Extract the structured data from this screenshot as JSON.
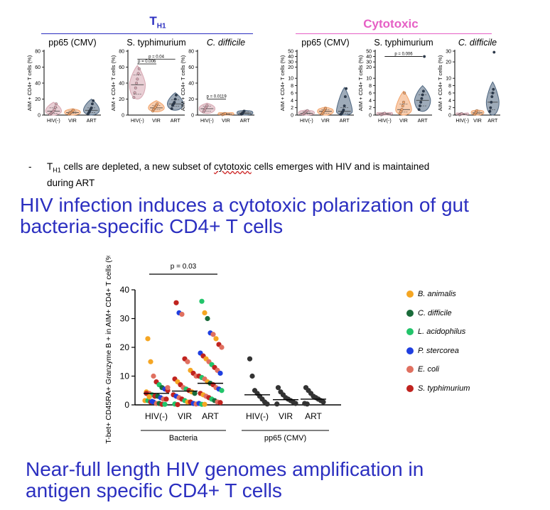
{
  "top": {
    "th1_label": "T",
    "th1_sub": "H1",
    "cytotoxic_label": "Cytotoxic",
    "th1_color": "#2b2fc0",
    "cytotoxic_color": "#e65fc5"
  },
  "chart_data": [
    {
      "id": "th1_pp65",
      "type": "violin",
      "title": "pp65 (CMV)",
      "title_italic": false,
      "ylabel": "AIM + CD4+ T cells (%)",
      "categories": [
        "HIV(-)",
        "VIR",
        "ART"
      ],
      "yticks": [
        0,
        20,
        40,
        60,
        80
      ],
      "ylim": [
        0,
        80
      ],
      "colors": [
        "#d7a7b2",
        "#f2a46b",
        "#4e6680"
      ],
      "groups": [
        {
          "points": [
            1,
            2,
            3,
            4,
            5,
            7,
            10,
            14
          ],
          "median": 5,
          "q1": 2,
          "q3": 9,
          "min": 0,
          "max": 16
        },
        {
          "points": [
            1,
            2,
            3,
            4,
            5,
            6
          ],
          "median": 3,
          "q1": 2,
          "q3": 5,
          "min": 0,
          "max": 8
        },
        {
          "points": [
            1,
            3,
            5,
            7,
            9,
            14,
            18
          ],
          "median": 6,
          "q1": 3,
          "q3": 9,
          "min": 0,
          "max": 20
        }
      ],
      "annotations": []
    },
    {
      "id": "th1_styph",
      "type": "violin",
      "title": "S. typhimurium",
      "title_italic": "S.",
      "ylabel": "AIM + CD4+ T cells (%)",
      "categories": [
        "HIV(-)",
        "VIR",
        "ART"
      ],
      "yticks": [
        0,
        20,
        40,
        60,
        80
      ],
      "ylim": [
        0,
        80
      ],
      "colors": [
        "#d7a7b2",
        "#f2a46b",
        "#4e6680"
      ],
      "groups": [
        {
          "points": [
            22,
            28,
            34,
            40,
            45,
            52,
            58
          ],
          "median": 38,
          "q1": 26,
          "q3": 50,
          "min": 20,
          "max": 62
        },
        {
          "points": [
            5,
            7,
            9,
            10,
            12,
            14
          ],
          "median": 9,
          "q1": 7,
          "q3": 12,
          "min": 4,
          "max": 18
        },
        {
          "points": [
            8,
            12,
            14,
            16,
            20,
            25
          ],
          "median": 14,
          "q1": 11,
          "q3": 19,
          "min": 6,
          "max": 28
        }
      ],
      "annotations": [
        {
          "from": 0,
          "to": 2,
          "label": "p = 0.04",
          "y": 70
        },
        {
          "from": 0,
          "to": 1,
          "label": "p = 0.006",
          "y": 64
        }
      ]
    },
    {
      "id": "th1_cdiff",
      "type": "violin",
      "title": "C. difficile",
      "title_italic": "all",
      "ylabel": "AIM + CD4+ T cells (%)",
      "categories": [
        "HIV(-)",
        "VIR",
        "ART"
      ],
      "yticks": [
        0,
        20,
        40,
        60,
        80
      ],
      "ylim": [
        0,
        80
      ],
      "colors": [
        "#d7a7b2",
        "#f2a46b",
        "#4e6680"
      ],
      "groups": [
        {
          "points": [
            4,
            6,
            8,
            10,
            12
          ],
          "median": 8,
          "q1": 5,
          "q3": 11,
          "min": 2,
          "max": 15
        },
        {
          "points": [
            0.5,
            1,
            1.5,
            2
          ],
          "median": 1,
          "q1": 0.5,
          "q3": 1.8,
          "min": 0,
          "max": 3
        },
        {
          "points": [
            1,
            2,
            3,
            5
          ],
          "median": 2.5,
          "q1": 1.5,
          "q3": 4,
          "min": 0,
          "max": 6
        }
      ],
      "annotations": [
        {
          "from": 0,
          "to": 1,
          "label": "p = 0.0119",
          "y": 20
        }
      ]
    },
    {
      "id": "cyto_pp65",
      "type": "violin",
      "title": "pp65 (CMV)",
      "title_italic": false,
      "ylabel": "AIM + CD4+ T cells (%)",
      "categories": [
        "HIV(-)",
        "VIR",
        "ART"
      ],
      "yticks": [
        0,
        2,
        4,
        6,
        8,
        10,
        20,
        30,
        40,
        50
      ],
      "ylim": [
        0,
        50
      ],
      "broken_at": 10,
      "colors": [
        "#d7a7b2",
        "#f2a46b",
        "#4e6680"
      ],
      "groups": [
        {
          "points": [
            0.2,
            0.4,
            0.6,
            0.8,
            1.0,
            1.2
          ],
          "median": 0.5,
          "q1": 0.3,
          "q3": 0.9,
          "min": 0,
          "max": 1.4
        },
        {
          "points": [
            0.3,
            0.6,
            1.0,
            1.4,
            1.8
          ],
          "median": 1.0,
          "q1": 0.5,
          "q3": 1.5,
          "min": 0,
          "max": 2.2
        },
        {
          "points": [
            0.2,
            0.5,
            0.9,
            1.4,
            2.5,
            5.0,
            7.2
          ],
          "median": 1.0,
          "q1": 0.4,
          "q3": 2.0,
          "min": 0,
          "max": 7.5
        }
      ],
      "annotations": []
    },
    {
      "id": "cyto_styph",
      "type": "violin",
      "title": "S. typhimurium",
      "title_italic": "S.",
      "ylabel": "AIM + CD4+ T cells (%)",
      "categories": [
        "HIV(-)",
        "VIR",
        "ART"
      ],
      "yticks": [
        0,
        2,
        4,
        6,
        8,
        10,
        20,
        30,
        40,
        50
      ],
      "ylim": [
        0,
        50
      ],
      "broken_at": 10,
      "colors": [
        "#d7a7b2",
        "#f2a46b",
        "#4e6680"
      ],
      "groups": [
        {
          "points": [
            0.1,
            0.2,
            0.3,
            0.4,
            0.5
          ],
          "median": 0.3,
          "q1": 0.2,
          "q3": 0.4,
          "min": 0,
          "max": 0.6
        },
        {
          "points": [
            0.5,
            1.0,
            1.5,
            2.5,
            3.5,
            6.0
          ],
          "median": 1.5,
          "q1": 0.8,
          "q3": 3.0,
          "min": 0,
          "max": 6.5
        },
        {
          "points": [
            1.5,
            2.5,
            3.5,
            4.5,
            5.5,
            6.5,
            40
          ],
          "median": 4.0,
          "q1": 2.5,
          "q3": 5.5,
          "min": 1,
          "max": 8
        }
      ],
      "annotations": [
        {
          "from": 0,
          "to": 2,
          "label": "p = 0.006",
          "y": 40
        }
      ]
    },
    {
      "id": "cyto_cdiff",
      "type": "violin",
      "title": "C. difficile",
      "title_italic": "all",
      "ylabel": "AIM + CD4+ T cells (%)",
      "categories": [
        "HIV(-)",
        "VIR",
        "ART"
      ],
      "yticks": [
        0,
        2,
        4,
        6,
        8,
        10,
        20,
        30
      ],
      "ylim": [
        0,
        30
      ],
      "broken_at": 10,
      "colors": [
        "#d7a7b2",
        "#f2a46b",
        "#4e6680"
      ],
      "groups": [
        {
          "points": [
            0.1,
            0.2,
            0.3,
            0.4
          ],
          "median": 0.2,
          "q1": 0.1,
          "q3": 0.3,
          "min": 0,
          "max": 0.5
        },
        {
          "points": [
            0.2,
            0.5,
            0.8,
            1.2
          ],
          "median": 0.6,
          "q1": 0.3,
          "q3": 1.0,
          "min": 0,
          "max": 1.4
        },
        {
          "points": [
            1,
            2,
            3.5,
            5,
            6,
            7,
            29
          ],
          "median": 3.5,
          "q1": 1.5,
          "q3": 6.0,
          "min": 0,
          "max": 9
        }
      ],
      "annotations": []
    },
    {
      "id": "main_scatter",
      "type": "scatter",
      "ylabel": "T-bet+ CD45RA+ Granzyme B + in AIM+ CD4+ T cells (%)",
      "ylim": [
        0,
        40
      ],
      "yticks": [
        0,
        10,
        20,
        30,
        40
      ],
      "categories": [
        "HIV(-)",
        "VIR",
        "ART",
        "HIV(-)",
        "VIR",
        "ART"
      ],
      "group_labels": [
        {
          "label": "Bacteria",
          "from": 0,
          "to": 2
        },
        {
          "label": "pp65 (CMV)",
          "from": 3,
          "to": 5
        }
      ],
      "annotation": {
        "label": "p = 0.03",
        "from": 0,
        "to": 2,
        "y": 45
      },
      "legend": [
        {
          "name": "B. animalis",
          "color": "#f5a623"
        },
        {
          "name": "C. difficile",
          "color": "#1a6b3a"
        },
        {
          "name": "L. acidophilus",
          "color": "#22c46a"
        },
        {
          "name": "P. stercorea",
          "color": "#1f3fe0"
        },
        {
          "name": "E. coli",
          "color": "#e07060"
        },
        {
          "name": "S. typhimurium",
          "color": "#c0231f"
        }
      ],
      "medians": [
        4,
        4.8,
        7.5,
        3.5,
        1.8,
        2.0
      ],
      "points": [
        {
          "c": 0,
          "y": 23,
          "s": 0
        },
        {
          "c": 0,
          "y": 15,
          "s": 0
        },
        {
          "c": 0,
          "y": 10,
          "s": 4
        },
        {
          "c": 0,
          "y": 8,
          "s": 5
        },
        {
          "c": 0,
          "y": 7,
          "s": 2
        },
        {
          "c": 0,
          "y": 6,
          "s": 1
        },
        {
          "c": 0,
          "y": 5.5,
          "s": 3
        },
        {
          "c": 0,
          "y": 5,
          "s": 5
        },
        {
          "c": 0,
          "y": 4.5,
          "s": 0
        },
        {
          "c": 0,
          "y": 4,
          "s": 4
        },
        {
          "c": 0,
          "y": 3.5,
          "s": 2
        },
        {
          "c": 0,
          "y": 3,
          "s": 5
        },
        {
          "c": 0,
          "y": 3,
          "s": 1
        },
        {
          "c": 0,
          "y": 2.5,
          "s": 3
        },
        {
          "c": 0,
          "y": 2,
          "s": 4
        },
        {
          "c": 0,
          "y": 2,
          "s": 5
        },
        {
          "c": 0,
          "y": 1.5,
          "s": 0
        },
        {
          "c": 0,
          "y": 1.5,
          "s": 2
        },
        {
          "c": 0,
          "y": 1,
          "s": 5
        },
        {
          "c": 0,
          "y": 1,
          "s": 3
        },
        {
          "c": 0,
          "y": 0.5,
          "s": 4
        },
        {
          "c": 0,
          "y": 0.5,
          "s": 1
        },
        {
          "c": 0,
          "y": 0.2,
          "s": 5
        },
        {
          "c": 0,
          "y": 0.2,
          "s": 2
        },
        {
          "c": 0,
          "y": 6,
          "s": 4
        },
        {
          "c": 0,
          "y": 4,
          "s": 5
        },
        {
          "c": 0,
          "y": 2.8,
          "s": 0
        },
        {
          "c": 0,
          "y": 1.2,
          "s": 3
        },
        {
          "c": 1,
          "y": 35.5,
          "s": 5
        },
        {
          "c": 1,
          "y": 32,
          "s": 3
        },
        {
          "c": 1,
          "y": 31.5,
          "s": 4
        },
        {
          "c": 1,
          "y": 16,
          "s": 5
        },
        {
          "c": 1,
          "y": 15,
          "s": 4
        },
        {
          "c": 1,
          "y": 12,
          "s": 0
        },
        {
          "c": 1,
          "y": 11,
          "s": 5
        },
        {
          "c": 1,
          "y": 10,
          "s": 4
        },
        {
          "c": 1,
          "y": 9,
          "s": 5
        },
        {
          "c": 1,
          "y": 8,
          "s": 0
        },
        {
          "c": 1,
          "y": 7,
          "s": 5
        },
        {
          "c": 1,
          "y": 6,
          "s": 4
        },
        {
          "c": 1,
          "y": 5.5,
          "s": 2
        },
        {
          "c": 1,
          "y": 5,
          "s": 5
        },
        {
          "c": 1,
          "y": 4.5,
          "s": 0
        },
        {
          "c": 1,
          "y": 4,
          "s": 1
        },
        {
          "c": 1,
          "y": 3.5,
          "s": 5
        },
        {
          "c": 1,
          "y": 3,
          "s": 3
        },
        {
          "c": 1,
          "y": 2.5,
          "s": 4
        },
        {
          "c": 1,
          "y": 2,
          "s": 5
        },
        {
          "c": 1,
          "y": 1.5,
          "s": 2
        },
        {
          "c": 1,
          "y": 1,
          "s": 0
        },
        {
          "c": 1,
          "y": 1,
          "s": 5
        },
        {
          "c": 1,
          "y": 0.5,
          "s": 3
        },
        {
          "c": 1,
          "y": 0.3,
          "s": 4
        },
        {
          "c": 1,
          "y": 0.3,
          "s": 2
        },
        {
          "c": 1,
          "y": 0.1,
          "s": 5
        },
        {
          "c": 2,
          "y": 36,
          "s": 2
        },
        {
          "c": 2,
          "y": 32,
          "s": 0
        },
        {
          "c": 2,
          "y": 30,
          "s": 1
        },
        {
          "c": 2,
          "y": 25,
          "s": 3
        },
        {
          "c": 2,
          "y": 24.5,
          "s": 4
        },
        {
          "c": 2,
          "y": 23,
          "s": 0
        },
        {
          "c": 2,
          "y": 21,
          "s": 5
        },
        {
          "c": 2,
          "y": 20,
          "s": 4
        },
        {
          "c": 2,
          "y": 18,
          "s": 3
        },
        {
          "c": 2,
          "y": 17,
          "s": 5
        },
        {
          "c": 2,
          "y": 16,
          "s": 0
        },
        {
          "c": 2,
          "y": 15,
          "s": 4
        },
        {
          "c": 2,
          "y": 14,
          "s": 2
        },
        {
          "c": 2,
          "y": 13,
          "s": 5
        },
        {
          "c": 2,
          "y": 12,
          "s": 4
        },
        {
          "c": 2,
          "y": 11,
          "s": 3
        },
        {
          "c": 2,
          "y": 10,
          "s": 5
        },
        {
          "c": 2,
          "y": 9.5,
          "s": 2
        },
        {
          "c": 2,
          "y": 9,
          "s": 4
        },
        {
          "c": 2,
          "y": 8,
          "s": 0
        },
        {
          "c": 2,
          "y": 7.5,
          "s": 1
        },
        {
          "c": 2,
          "y": 7,
          "s": 5
        },
        {
          "c": 2,
          "y": 6,
          "s": 4
        },
        {
          "c": 2,
          "y": 5.5,
          "s": 3
        },
        {
          "c": 2,
          "y": 5,
          "s": 2
        },
        {
          "c": 2,
          "y": 4,
          "s": 5
        },
        {
          "c": 2,
          "y": 3.5,
          "s": 0
        },
        {
          "c": 2,
          "y": 3,
          "s": 4
        },
        {
          "c": 2,
          "y": 2.5,
          "s": 5
        },
        {
          "c": 2,
          "y": 2,
          "s": 2
        },
        {
          "c": 2,
          "y": 1.5,
          "s": 1
        },
        {
          "c": 2,
          "y": 1,
          "s": 4
        },
        {
          "c": 2,
          "y": 0.8,
          "s": 5
        },
        {
          "c": 2,
          "y": 0.5,
          "s": 3
        },
        {
          "c": 2,
          "y": 0.2,
          "s": 2
        },
        {
          "c": 2,
          "y": 0.2,
          "s": 0
        },
        {
          "c": 3,
          "y": 16,
          "s": -1
        },
        {
          "c": 3,
          "y": 10,
          "s": -1
        },
        {
          "c": 3,
          "y": 5,
          "s": -1
        },
        {
          "c": 3,
          "y": 4,
          "s": -1
        },
        {
          "c": 3,
          "y": 3,
          "s": -1
        },
        {
          "c": 3,
          "y": 2,
          "s": -1
        },
        {
          "c": 3,
          "y": 1,
          "s": -1
        },
        {
          "c": 3,
          "y": 0.3,
          "s": -1
        },
        {
          "c": 4,
          "y": 6,
          "s": -1
        },
        {
          "c": 4,
          "y": 4.5,
          "s": -1
        },
        {
          "c": 4,
          "y": 3.5,
          "s": -1
        },
        {
          "c": 4,
          "y": 2.5,
          "s": -1
        },
        {
          "c": 4,
          "y": 2,
          "s": -1
        },
        {
          "c": 4,
          "y": 1.5,
          "s": -1
        },
        {
          "c": 4,
          "y": 1,
          "s": -1
        },
        {
          "c": 4,
          "y": 0.5,
          "s": -1
        },
        {
          "c": 4,
          "y": 0.3,
          "s": -1
        },
        {
          "c": 5,
          "y": 6,
          "s": -1
        },
        {
          "c": 5,
          "y": 5,
          "s": -1
        },
        {
          "c": 5,
          "y": 4,
          "s": -1
        },
        {
          "c": 5,
          "y": 3,
          "s": -1
        },
        {
          "c": 5,
          "y": 2.5,
          "s": -1
        },
        {
          "c": 5,
          "y": 2,
          "s": -1
        },
        {
          "c": 5,
          "y": 1.5,
          "s": -1
        },
        {
          "c": 5,
          "y": 1,
          "s": -1
        },
        {
          "c": 5,
          "y": 0.5,
          "s": -1
        },
        {
          "c": 5,
          "y": 0.3,
          "s": -1
        }
      ],
      "cmv_color": "#333333"
    }
  ],
  "bullet": {
    "marker": "-",
    "pre": "T",
    "sub": "H1",
    "text_a": " cells are depleted, a new subset of ",
    "text_underlined": "cytotoxic",
    "text_b": " cells emerges with HIV and is maintained",
    "line2": "during ART"
  },
  "heading1": {
    "line1": "HIV infection induces a cytotoxic polarization of gut",
    "line2": "bacteria-specific CD4+ T  cells"
  },
  "heading2": {
    "line1": "Near-full length HIV genomes amplification in",
    "line2": "antigen specific CD4+ T cells"
  }
}
